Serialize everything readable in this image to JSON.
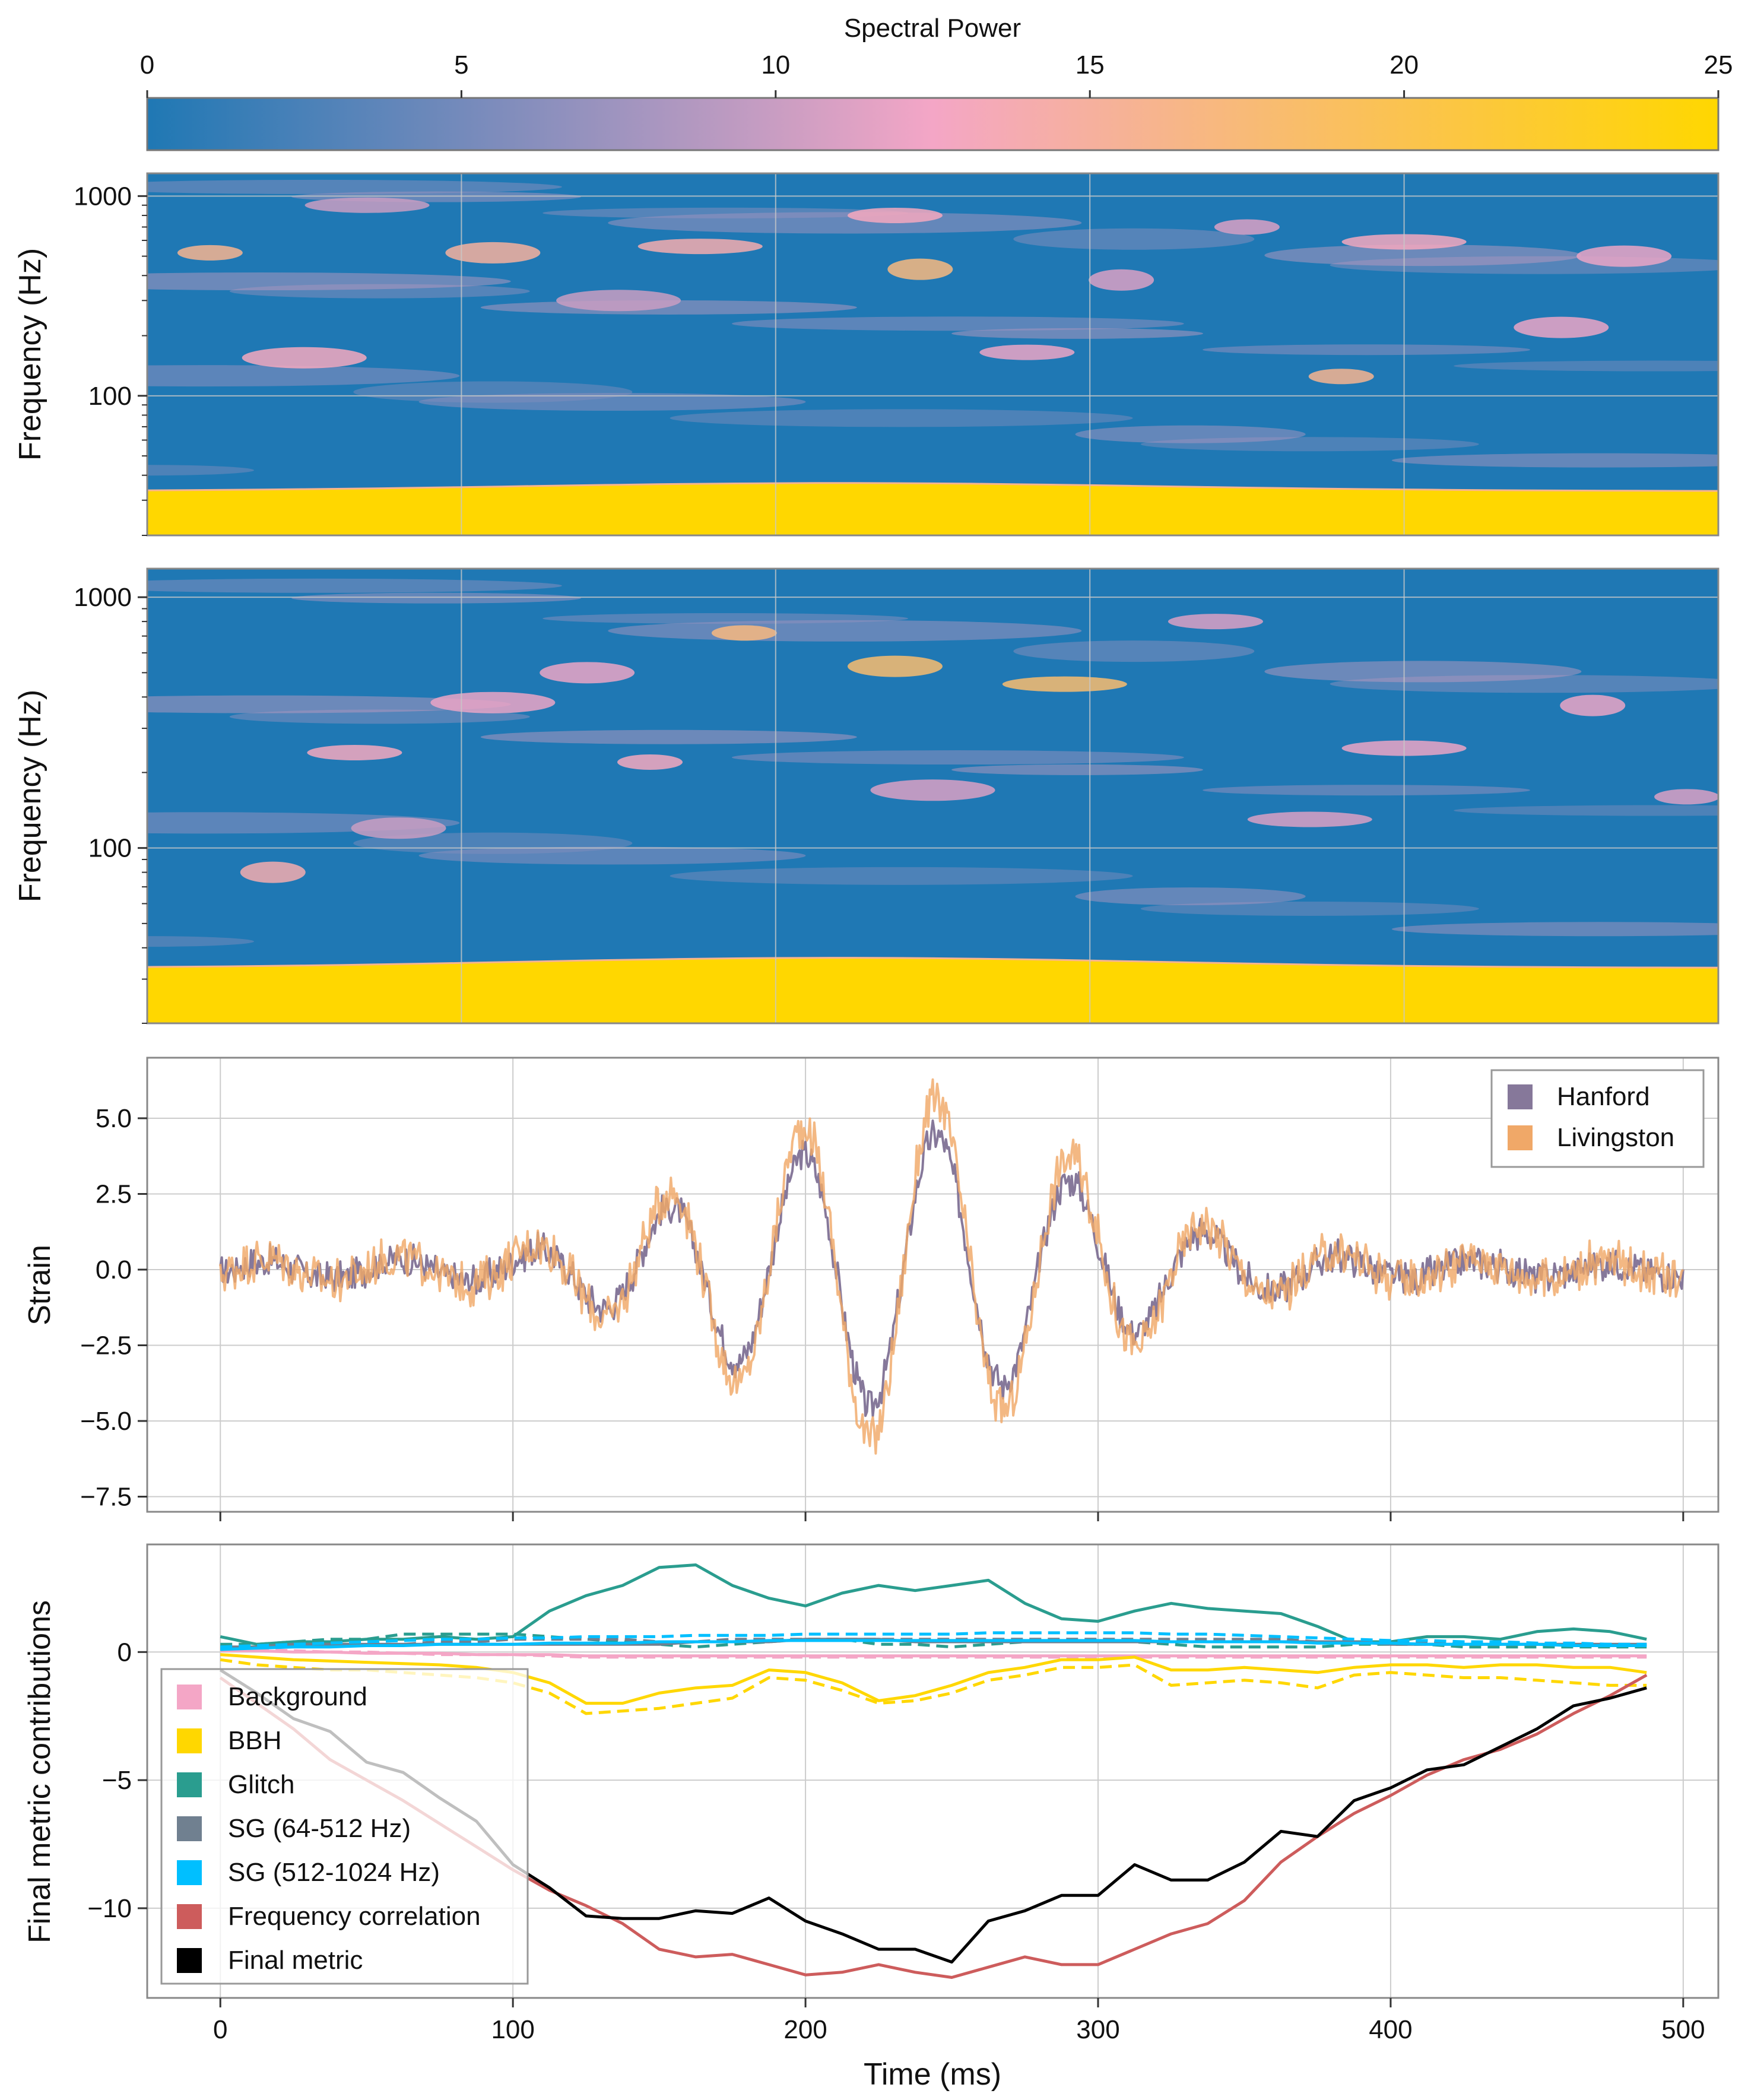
{
  "colormap": {
    "stops": [
      "#1f78b4",
      "#f4a6c6",
      "#ffd700"
    ],
    "title": "Spectral Power",
    "range": [
      0,
      25
    ],
    "ticks": [
      0,
      5,
      10,
      15,
      20,
      25
    ]
  },
  "chart_data": [
    {
      "type": "heatmap",
      "title": "",
      "xlabel": "",
      "ylabel": "Frequency (Hz)",
      "y_scale": "log",
      "ylim": [
        20,
        1300
      ],
      "y_ticks": [
        100,
        1000
      ],
      "x_grid": [
        0,
        5,
        10,
        15,
        20,
        25
      ],
      "x_range": [
        0,
        25
      ],
      "value_range": [
        0,
        25
      ],
      "low_frequency_band": "saturated near 25 below about 35 Hz",
      "blobs": [
        {
          "t": 1.0,
          "f": 520,
          "v": 16
        },
        {
          "t": 5.5,
          "f": 520,
          "v": 15
        },
        {
          "t": 8.8,
          "f": 560,
          "v": 14
        },
        {
          "t": 12.3,
          "f": 430,
          "v": 17
        },
        {
          "t": 11.9,
          "f": 800,
          "v": 13
        },
        {
          "t": 2.5,
          "f": 155,
          "v": 13
        },
        {
          "t": 19.0,
          "f": 125,
          "v": 16
        },
        {
          "t": 22.5,
          "f": 220,
          "v": 12
        },
        {
          "t": 20.0,
          "f": 590,
          "v": 13
        },
        {
          "t": 15.5,
          "f": 380,
          "v": 11
        },
        {
          "t": 14.0,
          "f": 165,
          "v": 12
        },
        {
          "t": 7.5,
          "f": 300,
          "v": 10
        },
        {
          "t": 17.5,
          "f": 700,
          "v": 11
        },
        {
          "t": 23.5,
          "f": 500,
          "v": 12
        },
        {
          "t": 3.5,
          "f": 900,
          "v": 10
        }
      ]
    },
    {
      "type": "heatmap",
      "title": "",
      "xlabel": "",
      "ylabel": "Frequency (Hz)",
      "y_scale": "log",
      "ylim": [
        20,
        1300
      ],
      "y_ticks": [
        100,
        1000
      ],
      "x_grid": [
        0,
        5,
        10,
        15,
        20,
        25
      ],
      "x_range": [
        0,
        25
      ],
      "value_range": [
        0,
        25
      ],
      "low_frequency_band": "saturated near 25 below about 35 Hz",
      "blobs": [
        {
          "t": 9.5,
          "f": 720,
          "v": 17
        },
        {
          "t": 11.9,
          "f": 530,
          "v": 18
        },
        {
          "t": 14.6,
          "f": 450,
          "v": 18
        },
        {
          "t": 2.0,
          "f": 80,
          "v": 14
        },
        {
          "t": 3.3,
          "f": 240,
          "v": 13
        },
        {
          "t": 5.5,
          "f": 380,
          "v": 12
        },
        {
          "t": 8.0,
          "f": 220,
          "v": 13
        },
        {
          "t": 7.0,
          "f": 500,
          "v": 12
        },
        {
          "t": 20.0,
          "f": 250,
          "v": 12
        },
        {
          "t": 23.0,
          "f": 370,
          "v": 12
        },
        {
          "t": 17.0,
          "f": 800,
          "v": 11
        },
        {
          "t": 12.5,
          "f": 170,
          "v": 11
        },
        {
          "t": 24.5,
          "f": 160,
          "v": 11
        },
        {
          "t": 4.0,
          "f": 120,
          "v": 10
        },
        {
          "t": 18.5,
          "f": 130,
          "v": 11
        }
      ]
    },
    {
      "type": "line",
      "title": "",
      "xlabel": "",
      "ylabel": "Strain",
      "xlim": [
        -25,
        512
      ],
      "ylim": [
        -8.0,
        7.0
      ],
      "x_ticks": [
        0,
        100,
        200,
        300,
        400,
        500
      ],
      "y_ticks": [
        5.0,
        2.5,
        0.0,
        -2.5,
        -5.0,
        -7.5
      ],
      "y_tick_labels": [
        "5.0",
        "2.5",
        "0.0",
        "−2.5",
        "−5.0",
        "−7.5"
      ],
      "grid": true,
      "legend": "top-right",
      "waveform_envelope": {
        "x": [
          0,
          40,
          80,
          100,
          120,
          140,
          160,
          180,
          200,
          220,
          240,
          260,
          280,
          300,
          320,
          340,
          360,
          380,
          400,
          440,
          480,
          500
        ],
        "amplitude": [
          0.25,
          0.3,
          0.35,
          0.5,
          0.9,
          1.6,
          2.3,
          3.2,
          3.8,
          4.5,
          4.6,
          4.0,
          3.4,
          2.6,
          1.8,
          1.1,
          0.7,
          0.45,
          0.3,
          0.25,
          0.2,
          0.2
        ],
        "period_ms": 46,
        "phase_zero_ms": 15
      },
      "series": [
        {
          "name": "Hanford",
          "color": "#86789a",
          "scale": 1.0,
          "noise": 0.6
        },
        {
          "name": "Livingston",
          "color": "#f0a868",
          "scale": 1.25,
          "noise": 0.8
        }
      ]
    },
    {
      "type": "line",
      "title": "",
      "xlabel": "Time (ms)",
      "ylabel": "Final metric contributions",
      "xlim": [
        -25,
        512
      ],
      "ylim": [
        -13.5,
        4.2
      ],
      "x_ticks": [
        0,
        100,
        200,
        300,
        400,
        500
      ],
      "y_ticks": [
        0,
        -5,
        -10
      ],
      "y_tick_labels": [
        "0",
        "−5",
        "−10"
      ],
      "grid": true,
      "legend": "bottom-left",
      "x": [
        0,
        12.5,
        25,
        37.5,
        50,
        62.5,
        75,
        87.5,
        100,
        112.5,
        125,
        137.5,
        150,
        162.5,
        175,
        187.5,
        200,
        212.5,
        225,
        237.5,
        250,
        262.5,
        275,
        287.5,
        300,
        312.5,
        325,
        337.5,
        350,
        362.5,
        375,
        387.5,
        400,
        412.5,
        425,
        437.5,
        450,
        462.5,
        475,
        487.5
      ],
      "series": [
        {
          "name": "Background",
          "color": "#f4a6c6",
          "style": "solid",
          "in_legend": true,
          "values": [
            0.05,
            0.05,
            0.0,
            0.0,
            -0.05,
            -0.05,
            -0.05,
            -0.1,
            -0.1,
            -0.1,
            -0.15,
            -0.15,
            -0.15,
            -0.15,
            -0.15,
            -0.15,
            -0.15,
            -0.15,
            -0.15,
            -0.15,
            -0.15,
            -0.15,
            -0.15,
            -0.15,
            -0.15,
            -0.15,
            -0.15,
            -0.15,
            -0.15,
            -0.15,
            -0.15,
            -0.15,
            -0.15,
            -0.15,
            -0.15,
            -0.15,
            -0.15,
            -0.15,
            -0.15,
            -0.15
          ]
        },
        {
          "name": "Background",
          "color": "#f4a6c6",
          "style": "dashed",
          "in_legend": false,
          "values": [
            0.1,
            0.1,
            0.05,
            0.0,
            0.0,
            -0.05,
            -0.1,
            -0.1,
            -0.1,
            -0.15,
            -0.2,
            -0.2,
            -0.2,
            -0.2,
            -0.2,
            -0.2,
            -0.2,
            -0.2,
            -0.2,
            -0.2,
            -0.2,
            -0.2,
            -0.2,
            -0.2,
            -0.2,
            -0.2,
            -0.2,
            -0.2,
            -0.2,
            -0.2,
            -0.2,
            -0.2,
            -0.2,
            -0.2,
            -0.2,
            -0.2,
            -0.2,
            -0.2,
            -0.2,
            -0.2
          ]
        },
        {
          "name": "BBH",
          "color": "#ffd700",
          "style": "solid",
          "in_legend": true,
          "values": [
            -0.1,
            -0.2,
            -0.3,
            -0.35,
            -0.4,
            -0.45,
            -0.5,
            -0.6,
            -0.8,
            -1.2,
            -2.0,
            -2.0,
            -1.6,
            -1.4,
            -1.3,
            -0.7,
            -0.8,
            -1.2,
            -1.9,
            -1.7,
            -1.3,
            -0.8,
            -0.6,
            -0.3,
            -0.3,
            -0.2,
            -0.7,
            -0.7,
            -0.6,
            -0.7,
            -0.8,
            -0.6,
            -0.5,
            -0.5,
            -0.6,
            -0.5,
            -0.5,
            -0.6,
            -0.6,
            -0.8
          ]
        },
        {
          "name": "BBH",
          "color": "#ffd700",
          "style": "dashed",
          "in_legend": false,
          "values": [
            -0.3,
            -0.5,
            -0.6,
            -0.7,
            -0.7,
            -0.8,
            -0.9,
            -1.0,
            -1.2,
            -1.6,
            -2.4,
            -2.3,
            -2.2,
            -2.0,
            -1.8,
            -1.0,
            -1.1,
            -1.5,
            -2.0,
            -1.9,
            -1.6,
            -1.1,
            -0.9,
            -0.6,
            -0.6,
            -0.5,
            -1.3,
            -1.2,
            -1.1,
            -1.2,
            -1.4,
            -0.9,
            -0.8,
            -0.9,
            -1.0,
            -1.0,
            -1.1,
            -1.2,
            -1.3,
            -1.3
          ]
        },
        {
          "name": "Glitch",
          "color": "#2a9d8f",
          "style": "solid",
          "in_legend": true,
          "values": [
            0.6,
            0.3,
            0.4,
            0.4,
            0.5,
            0.5,
            0.6,
            0.5,
            0.6,
            1.6,
            2.2,
            2.6,
            3.3,
            3.4,
            2.6,
            2.1,
            1.8,
            2.3,
            2.6,
            2.4,
            2.6,
            2.8,
            1.9,
            1.3,
            1.2,
            1.6,
            1.9,
            1.7,
            1.6,
            1.5,
            1.0,
            0.4,
            0.4,
            0.6,
            0.6,
            0.5,
            0.8,
            0.9,
            0.8,
            0.5
          ]
        },
        {
          "name": "Glitch",
          "color": "#2a9d8f",
          "style": "dashed",
          "in_legend": false,
          "values": [
            0.3,
            0.3,
            0.4,
            0.5,
            0.5,
            0.7,
            0.7,
            0.7,
            0.7,
            0.6,
            0.5,
            0.4,
            0.3,
            0.2,
            0.3,
            0.4,
            0.5,
            0.5,
            0.3,
            0.3,
            0.2,
            0.3,
            0.4,
            0.4,
            0.4,
            0.4,
            0.3,
            0.2,
            0.2,
            0.2,
            0.2,
            0.3,
            0.3,
            0.3,
            0.2,
            0.2,
            0.2,
            0.2,
            0.2,
            0.2
          ]
        },
        {
          "name": "SG (64-512 Hz)",
          "color": "#708090",
          "style": "solid",
          "in_legend": true,
          "values": [
            0.2,
            0.2,
            0.3,
            0.3,
            0.3,
            0.3,
            0.3,
            0.3,
            0.3,
            0.3,
            0.3,
            0.3,
            0.3,
            0.4,
            0.4,
            0.4,
            0.5,
            0.5,
            0.5,
            0.4,
            0.4,
            0.4,
            0.4,
            0.4,
            0.4,
            0.4,
            0.4,
            0.4,
            0.4,
            0.4,
            0.4,
            0.4,
            0.3,
            0.3,
            0.3,
            0.3,
            0.3,
            0.3,
            0.3,
            0.3
          ]
        },
        {
          "name": "SG (64-512 Hz)",
          "color": "#708090",
          "style": "dashed",
          "in_legend": false,
          "values": [
            0.1,
            0.2,
            0.2,
            0.3,
            0.3,
            0.3,
            0.4,
            0.4,
            0.5,
            0.5,
            0.5,
            0.5,
            0.4,
            0.4,
            0.5,
            0.5,
            0.5,
            0.5,
            0.5,
            0.5,
            0.5,
            0.5,
            0.5,
            0.5,
            0.5,
            0.5,
            0.5,
            0.5,
            0.5,
            0.5,
            0.4,
            0.4,
            0.4,
            0.4,
            0.3,
            0.3,
            0.3,
            0.3,
            0.3,
            0.3
          ]
        },
        {
          "name": "SG (512-1024 Hz)",
          "color": "#00bfff",
          "style": "solid",
          "in_legend": true,
          "values": [
            0.1,
            0.15,
            0.2,
            0.2,
            0.25,
            0.25,
            0.3,
            0.3,
            0.3,
            0.35,
            0.35,
            0.35,
            0.4,
            0.4,
            0.4,
            0.45,
            0.45,
            0.45,
            0.45,
            0.45,
            0.45,
            0.45,
            0.45,
            0.45,
            0.45,
            0.45,
            0.4,
            0.4,
            0.4,
            0.4,
            0.35,
            0.35,
            0.35,
            0.3,
            0.3,
            0.3,
            0.3,
            0.25,
            0.25,
            0.25
          ]
        },
        {
          "name": "SG (512-1024 Hz)",
          "color": "#00bfff",
          "style": "dashed",
          "in_legend": false,
          "values": [
            0.2,
            0.25,
            0.3,
            0.35,
            0.4,
            0.45,
            0.5,
            0.5,
            0.55,
            0.55,
            0.6,
            0.6,
            0.6,
            0.65,
            0.65,
            0.65,
            0.7,
            0.7,
            0.7,
            0.7,
            0.7,
            0.75,
            0.75,
            0.75,
            0.75,
            0.75,
            0.7,
            0.7,
            0.65,
            0.6,
            0.55,
            0.5,
            0.45,
            0.45,
            0.4,
            0.4,
            0.35,
            0.35,
            0.3,
            0.3
          ]
        },
        {
          "name": "Frequency correlation",
          "color": "#cd5c5c",
          "style": "solid",
          "in_legend": true,
          "values": [
            -1.0,
            -2.0,
            -3.0,
            -4.2,
            -5.0,
            -5.8,
            -6.7,
            -7.6,
            -8.5,
            -9.3,
            -9.9,
            -10.6,
            -11.6,
            -11.9,
            -11.8,
            -12.2,
            -12.6,
            -12.5,
            -12.2,
            -12.5,
            -12.7,
            -12.3,
            -11.9,
            -12.2,
            -12.2,
            -11.6,
            -11.0,
            -10.6,
            -9.7,
            -8.2,
            -7.2,
            -6.3,
            -5.6,
            -4.8,
            -4.2,
            -3.8,
            -3.2,
            -2.4,
            -1.7,
            -0.9
          ]
        },
        {
          "name": "Final metric",
          "color": "#000000",
          "style": "solid",
          "in_legend": true,
          "values": [
            -0.7,
            -1.6,
            -2.6,
            -3.1,
            -4.3,
            -4.7,
            -5.7,
            -6.6,
            -8.3,
            -9.2,
            -10.3,
            -10.4,
            -10.4,
            -10.1,
            -10.2,
            -9.6,
            -10.5,
            -11.0,
            -11.6,
            -11.6,
            -12.1,
            -10.5,
            -10.1,
            -9.5,
            -9.5,
            -8.3,
            -8.9,
            -8.9,
            -8.2,
            -7.0,
            -7.2,
            -5.8,
            -5.3,
            -4.6,
            -4.4,
            -3.7,
            -3.0,
            -2.1,
            -1.8,
            -1.4
          ]
        }
      ]
    }
  ]
}
